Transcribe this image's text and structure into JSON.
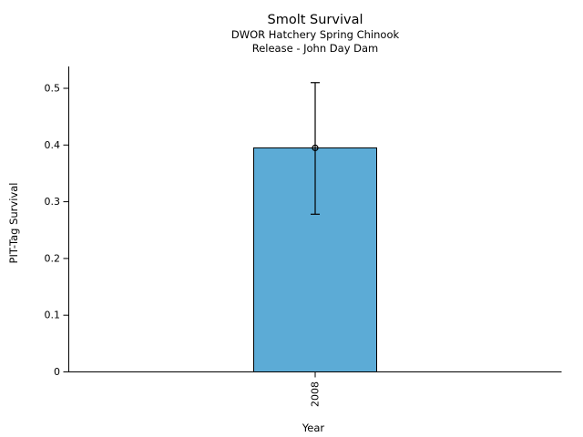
{
  "chart_data": {
    "type": "bar",
    "title": "Smolt Survival",
    "subtitle1": "DWOR Hatchery Spring Chinook",
    "subtitle2": "Release - John Day Dam",
    "xlabel": "Year",
    "ylabel": "PIT-Tag Survival",
    "categories": [
      "2008"
    ],
    "values": [
      0.395
    ],
    "error_low": [
      0.278
    ],
    "error_high": [
      0.51
    ],
    "ytick_values": [
      0,
      0.1,
      0.2,
      0.3,
      0.4,
      0.5
    ],
    "ytick_labels": [
      "0",
      "0.1",
      "0.2",
      "0.3",
      "0.4",
      "0.5"
    ],
    "ylim": [
      0,
      0.5385
    ],
    "grid": false,
    "legend": "none",
    "marker": "open-circle",
    "bar_color": "#5CABD6",
    "bar_edge_color": "#000000",
    "error_color": "#000000",
    "axis_color": "#000000",
    "background_color": "#FFFFFF"
  }
}
